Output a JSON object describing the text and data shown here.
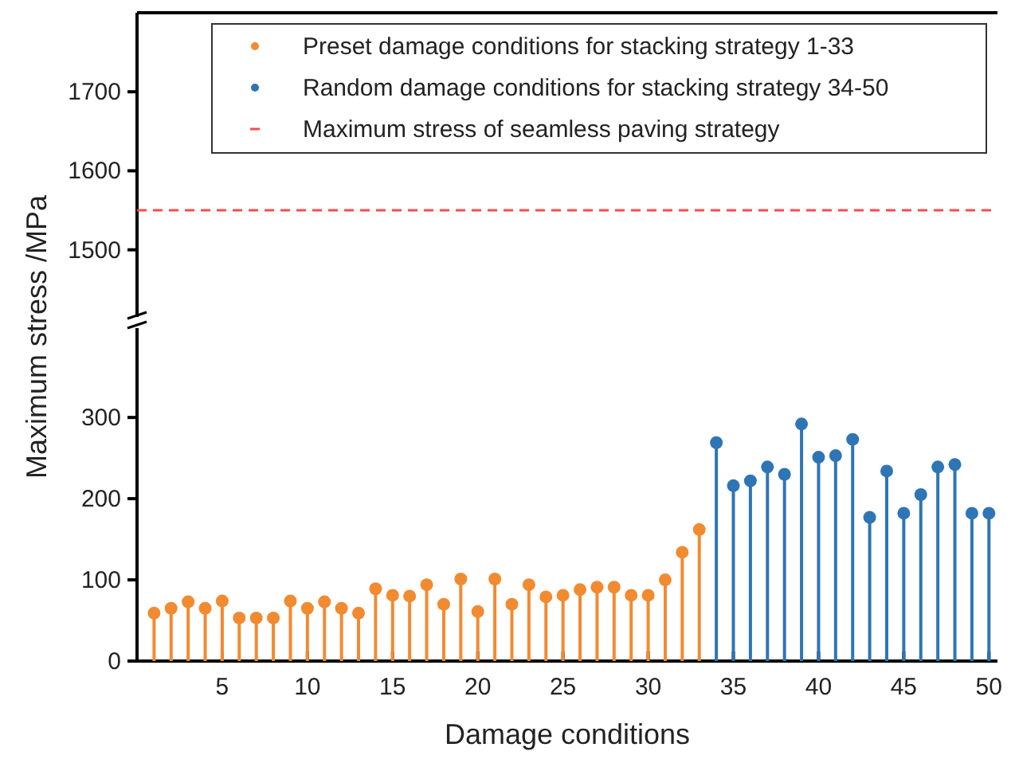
{
  "chart_data": [
    {
      "type": "lollipop",
      "xlim": [
        0,
        50.5
      ],
      "ylim": [
        1415,
        1800
      ],
      "yticks": [
        1500,
        1600,
        1700
      ],
      "tick_labels": "y",
      "ref_lines": [
        {
          "axis": "y",
          "value": 1550,
          "label": "Maximum stress of seamless paving strategy",
          "color": "#ff4b4b",
          "line_style": "dashed"
        }
      ]
    },
    {
      "type": "lollipop",
      "xlabel": "Damage conditions",
      "ylabel": "Maximum stress /MPa",
      "xlim": [
        0,
        50.5
      ],
      "xticks": [
        5,
        10,
        15,
        20,
        25,
        30,
        35,
        40,
        45,
        50
      ],
      "ylim": [
        0,
        410
      ],
      "yticks": [
        0,
        100,
        200,
        300
      ],
      "marker": "circle",
      "legend": "top",
      "series": [
        {
          "name": "Preset damage conditions for stacking strategy 1-33",
          "color": "#f28a30",
          "x": [
            1,
            2,
            3,
            4,
            5,
            6,
            7,
            8,
            9,
            10,
            11,
            12,
            13,
            14,
            15,
            16,
            17,
            18,
            19,
            20,
            21,
            22,
            23,
            24,
            25,
            26,
            27,
            28,
            29,
            30,
            31,
            32,
            33
          ],
          "values": [
            59,
            65,
            73,
            65,
            74,
            53,
            53,
            53,
            74,
            65,
            73,
            65,
            59,
            89,
            81,
            80,
            94,
            70,
            101,
            61,
            101,
            70,
            94,
            79,
            81,
            88,
            91,
            91,
            81,
            81,
            100,
            134,
            162
          ]
        },
        {
          "name": "Random damage conditions for stacking strategy 34-50",
          "color": "#2e75b6",
          "x": [
            34,
            35,
            36,
            37,
            38,
            39,
            40,
            41,
            42,
            43,
            44,
            45,
            46,
            47,
            48,
            49,
            50
          ],
          "values": [
            269,
            216,
            222,
            239,
            230,
            292,
            251,
            253,
            273,
            177,
            234,
            182,
            205,
            239,
            242,
            182,
            182
          ]
        }
      ]
    }
  ]
}
